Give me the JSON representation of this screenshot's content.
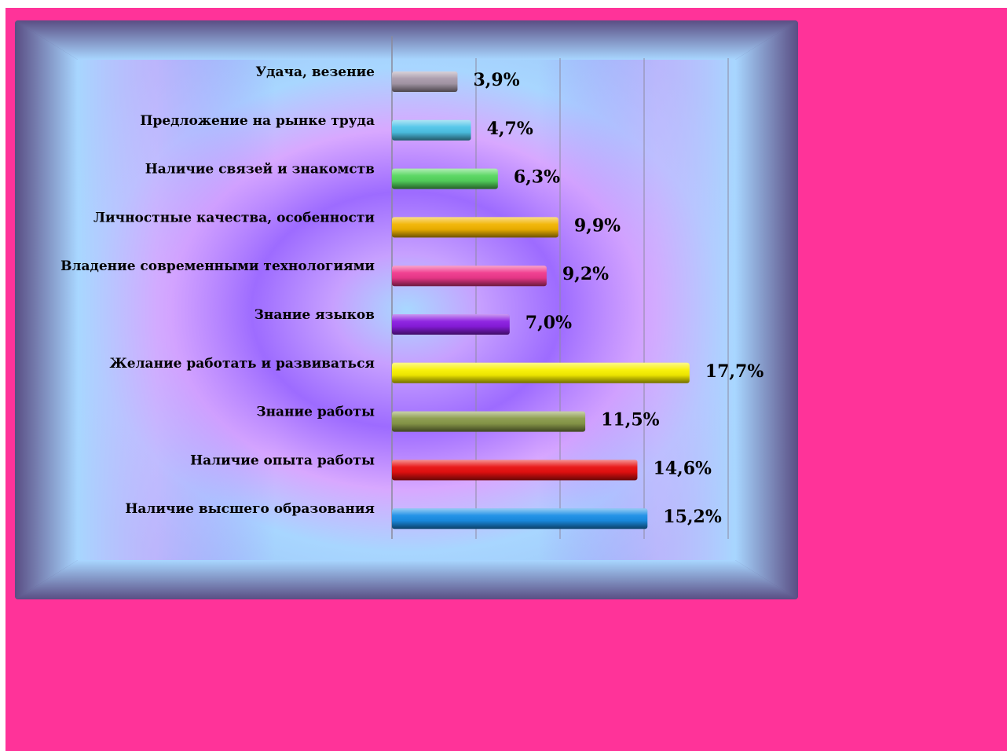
{
  "chart_data": {
    "type": "bar",
    "orientation": "horizontal",
    "categories": [
      "Удача, везение",
      "Предложение на рынке  труда",
      "Наличие связей и знакомств",
      "Личностные качества, особенности",
      "Владение современными технологиями",
      "Знание языков",
      "Желание работать и развиваться",
      "Знание работы",
      "Наличие опыта работы",
      "Наличие высшего образования"
    ],
    "values": [
      3.9,
      4.7,
      6.3,
      9.9,
      9.2,
      7.0,
      17.7,
      11.5,
      14.6,
      15.2
    ],
    "value_labels": [
      "3,9%",
      "4,7%",
      "6,3%",
      "9,9%",
      "9,2%",
      "7,0%",
      "17,7%",
      "11,5%",
      "14,6%",
      "15,2%"
    ],
    "colors": [
      "#a89aaa",
      "#4ec4e8",
      "#55d65e",
      "#f2b400",
      "#f0388c",
      "#8a1ce0",
      "#f8f000",
      "#8a9a4a",
      "#e81010",
      "#1a8ee6"
    ],
    "xlim": [
      0,
      20
    ],
    "x_gridlines": [
      0,
      5,
      10,
      15,
      20
    ],
    "grid": true,
    "legend": "none"
  },
  "colors": {
    "page_background": "#ff3399",
    "frame_outer": "#5a4e84",
    "frame_inner_light": "#a8d8ff",
    "frame_inner_purple": "#a070ff"
  }
}
